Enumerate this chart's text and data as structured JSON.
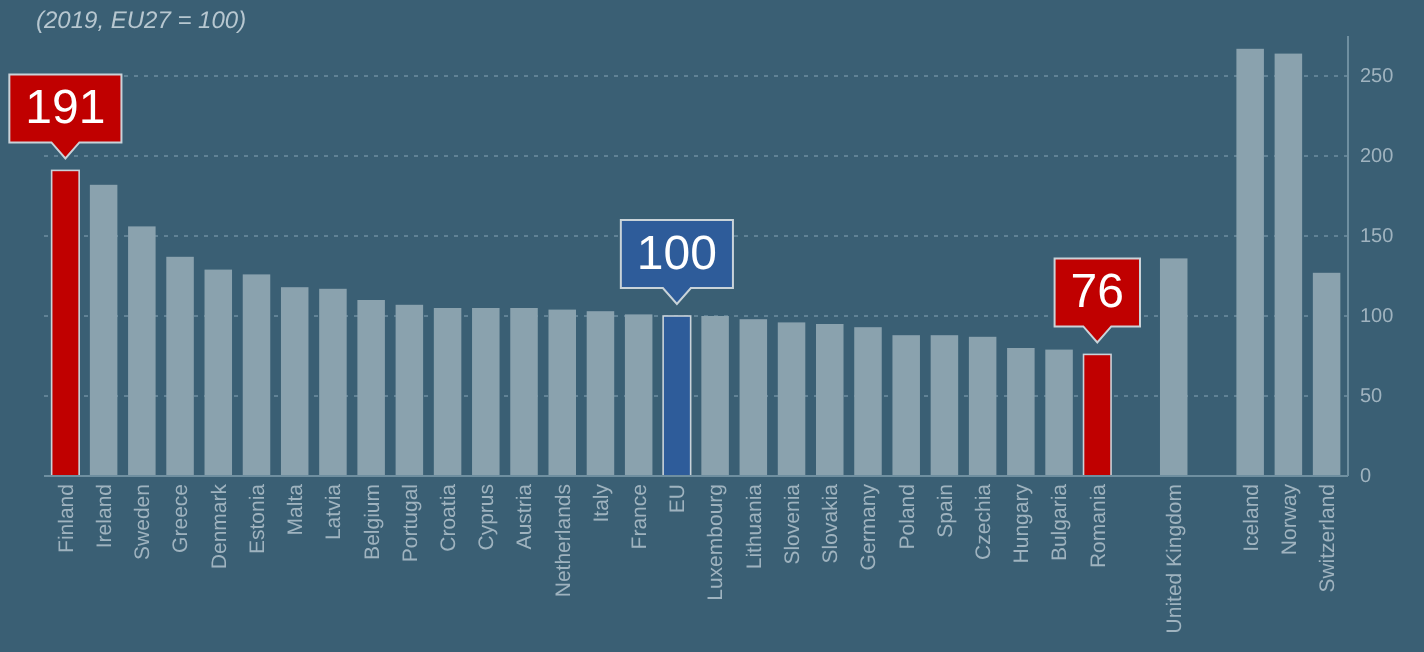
{
  "chart_data": {
    "type": "bar",
    "subtitle": "(2019, EU27 = 100)",
    "categories": [
      "Finland",
      "Ireland",
      "Sweden",
      "Greece",
      "Denmark",
      "Estonia",
      "Malta",
      "Latvia",
      "Belgium",
      "Portugal",
      "Croatia",
      "Cyprus",
      "Austria",
      "Netherlands",
      "Italy",
      "France",
      "EU",
      "Luxembourg",
      "Lithuania",
      "Slovenia",
      "Slovakia",
      "Germany",
      "Poland",
      "Spain",
      "Czechia",
      "Hungary",
      "Bulgaria",
      "Romania",
      null,
      "United Kingdom",
      null,
      "Iceland",
      "Norway",
      "Switzerland"
    ],
    "values": [
      191,
      182,
      156,
      137,
      129,
      126,
      118,
      117,
      110,
      107,
      105,
      105,
      105,
      104,
      103,
      101,
      100,
      100,
      98,
      96,
      95,
      93,
      88,
      88,
      87,
      80,
      79,
      76,
      null,
      136,
      null,
      267,
      264,
      127
    ],
    "colors": [
      "#c00000",
      "#8aa2ae",
      "#8aa2ae",
      "#8aa2ae",
      "#8aa2ae",
      "#8aa2ae",
      "#8aa2ae",
      "#8aa2ae",
      "#8aa2ae",
      "#8aa2ae",
      "#8aa2ae",
      "#8aa2ae",
      "#8aa2ae",
      "#8aa2ae",
      "#8aa2ae",
      "#8aa2ae",
      "#2e5c9a",
      "#8aa2ae",
      "#8aa2ae",
      "#8aa2ae",
      "#8aa2ae",
      "#8aa2ae",
      "#8aa2ae",
      "#8aa2ae",
      "#8aa2ae",
      "#8aa2ae",
      "#8aa2ae",
      "#c00000",
      "#8aa2ae",
      "#8aa2ae",
      "#8aa2ae",
      "#8aa2ae",
      "#8aa2ae",
      "#8aa2ae"
    ],
    "value_labels": [
      "191",
      null,
      null,
      null,
      null,
      null,
      null,
      null,
      null,
      null,
      null,
      null,
      null,
      null,
      null,
      null,
      "100",
      null,
      null,
      null,
      null,
      null,
      null,
      null,
      null,
      null,
      null,
      "76",
      null,
      null,
      null,
      null,
      null,
      null
    ],
    "ylim": [
      0,
      275
    ],
    "yticks": [
      0,
      50,
      100,
      150,
      200,
      250
    ],
    "grid": "y"
  }
}
